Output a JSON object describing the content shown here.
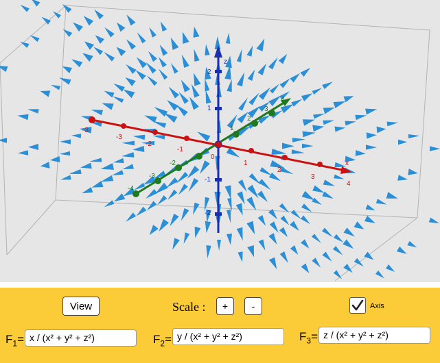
{
  "graphics": {
    "axis_labels": {
      "x": "x",
      "z": "z"
    },
    "red_ticks": [
      "-1",
      "-2",
      "-1",
      "0",
      "1",
      "2",
      "3",
      "4"
    ],
    "red_ticks_neg": [
      "-3",
      "-2",
      "-1"
    ],
    "green_ticks": [
      "-4",
      "-3",
      "-2",
      "-1",
      "1",
      "2",
      "3",
      "4"
    ],
    "blue_ticks": [
      "2",
      "1",
      "-1",
      "-2"
    ],
    "origin": "0",
    "colors": {
      "x_axis": "#cc1111",
      "y_axis": "#1f7a1f",
      "z_axis": "#1a2fb0",
      "arrow": "#2a8fd6",
      "background": "#e6e6e6"
    }
  },
  "controls": {
    "view_label": "View",
    "scale_label": "Scale :",
    "plus_label": "+",
    "minus_label": "-",
    "axis_label": "Axis",
    "axis_checked": true
  },
  "functions": [
    {
      "name": "F",
      "sub": "1",
      "value": "x / (x² + y² + z²)"
    },
    {
      "name": "F",
      "sub": "2",
      "value": "y / (x² + y² + z²)"
    },
    {
      "name": "F",
      "sub": "3",
      "value": "z / (x² + y² + z²)"
    }
  ],
  "panel_color": "#fbcc37"
}
